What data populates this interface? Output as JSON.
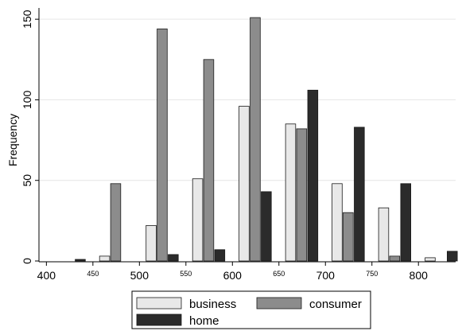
{
  "chart_data": {
    "type": "bar",
    "title": "",
    "xlabel": "",
    "ylabel": "Frequency",
    "xlim": [
      392,
      840
    ],
    "ylim": [
      0,
      156
    ],
    "bin_width": 50,
    "bin_starts": [
      400,
      450,
      500,
      550,
      600,
      650,
      700,
      750,
      800
    ],
    "x_ticks": [
      {
        "value": 400,
        "label": "400",
        "small": false
      },
      {
        "value": 450,
        "label": "450",
        "small": true
      },
      {
        "value": 500,
        "label": "500",
        "small": false
      },
      {
        "value": 550,
        "label": "550",
        "small": true
      },
      {
        "value": 600,
        "label": "600",
        "small": false
      },
      {
        "value": 650,
        "label": "650",
        "small": true
      },
      {
        "value": 700,
        "label": "700",
        "small": false
      },
      {
        "value": 750,
        "label": "750",
        "small": true
      },
      {
        "value": 800,
        "label": "800",
        "small": false
      }
    ],
    "y_ticks": [
      {
        "value": 0,
        "label": "0"
      },
      {
        "value": 50,
        "label": "50"
      },
      {
        "value": 100,
        "label": "100"
      },
      {
        "value": 150,
        "label": "150"
      }
    ],
    "grid": true,
    "legend_position": "bottom",
    "series": [
      {
        "name": "business",
        "color": "#e8e8e8",
        "values": [
          0,
          3,
          22,
          51,
          96,
          85,
          48,
          33,
          2
        ]
      },
      {
        "name": "consumer",
        "color": "#8c8c8c",
        "values": [
          0,
          48,
          144,
          125,
          151,
          82,
          30,
          3,
          0
        ]
      },
      {
        "name": "home",
        "color": "#2b2b2b",
        "values": [
          1,
          0,
          4,
          7,
          43,
          106,
          83,
          48,
          6
        ]
      }
    ]
  }
}
